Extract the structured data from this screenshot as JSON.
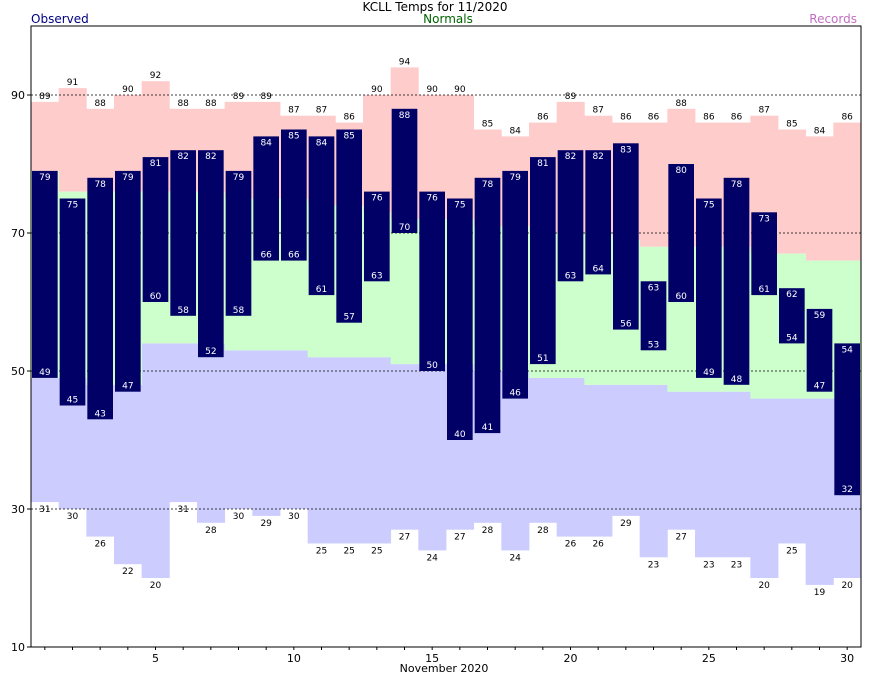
{
  "title": "KCLL Temps for 11/2020",
  "legend": {
    "observed": "Observed",
    "normals": "Normals",
    "records": "Records"
  },
  "colors": {
    "observed": "#000066",
    "observed_legend": "#000080",
    "normals": "#ccffcc",
    "normals_legend": "#006400",
    "record_high": "#ffcccc",
    "record_low": "#ccccff",
    "records_legend": "#c070c0"
  },
  "chart_data": {
    "type": "bar",
    "xlabel": "November 2020",
    "ylabel": "",
    "ylim": [
      10,
      100
    ],
    "yticks": [
      10,
      30,
      50,
      70,
      90
    ],
    "xticks": [
      5,
      10,
      15,
      20,
      25,
      30
    ],
    "grid": "dashed lines at 30, 50, 70, 90",
    "days": [
      1,
      2,
      3,
      4,
      5,
      6,
      7,
      8,
      9,
      10,
      11,
      12,
      13,
      14,
      15,
      16,
      17,
      18,
      19,
      20,
      21,
      22,
      23,
      24,
      25,
      26,
      27,
      28,
      29,
      30
    ],
    "obs_high": [
      79,
      75,
      78,
      79,
      81,
      82,
      82,
      79,
      84,
      85,
      84,
      85,
      76,
      88,
      76,
      75,
      78,
      79,
      81,
      82,
      82,
      83,
      63,
      80,
      75,
      78,
      73,
      62,
      59,
      54
    ],
    "obs_low": [
      49,
      45,
      43,
      47,
      60,
      58,
      52,
      58,
      66,
      66,
      61,
      57,
      63,
      70,
      50,
      40,
      41,
      46,
      51,
      63,
      64,
      56,
      53,
      60,
      49,
      48,
      61,
      54,
      47,
      32
    ],
    "normal_high": [
      79,
      76,
      76,
      76,
      76,
      76,
      76,
      75,
      75,
      75,
      74,
      74,
      73,
      72,
      72,
      72,
      71,
      71,
      70,
      70,
      70,
      69,
      68,
      68,
      68,
      68,
      67,
      67,
      66,
      66
    ],
    "normal_low": [
      49,
      49,
      48,
      48,
      54,
      54,
      54,
      53,
      53,
      53,
      52,
      52,
      52,
      51,
      51,
      51,
      50,
      50,
      49,
      49,
      48,
      48,
      48,
      47,
      47,
      47,
      46,
      46,
      46,
      46
    ],
    "record_high": [
      89,
      91,
      88,
      90,
      92,
      88,
      88,
      89,
      89,
      87,
      87,
      86,
      90,
      94,
      90,
      90,
      85,
      84,
      86,
      89,
      87,
      86,
      86,
      88,
      86,
      86,
      87,
      85,
      84,
      86
    ],
    "record_low": [
      31,
      30,
      26,
      22,
      20,
      31,
      28,
      30,
      29,
      30,
      25,
      25,
      25,
      27,
      24,
      27,
      28,
      24,
      28,
      26,
      26,
      29,
      23,
      27,
      23,
      23,
      20,
      25,
      19,
      20
    ]
  }
}
